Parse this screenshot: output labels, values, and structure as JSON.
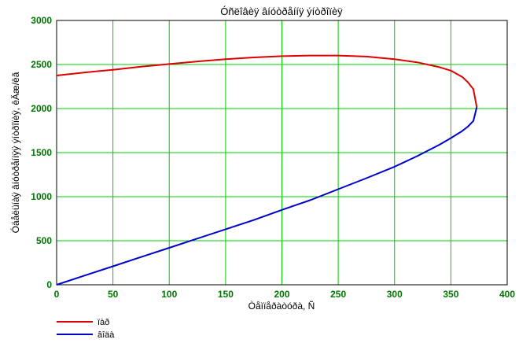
{
  "chart_data": {
    "type": "line",
    "title": "Óñëîâèÿ âíóòðåííÿ ýíòðîïèÿ",
    "xlabel": "Òåìïåðàòóðà, Ñ",
    "ylabel": "Óäåëüíàÿ âíóòðåííÿÿ ýíòðîïèÿ, êÄæ/êã",
    "xlim": [
      0,
      400
    ],
    "ylim": [
      0,
      3000
    ],
    "xticks": [
      "0",
      "50",
      "100",
      "150",
      "200",
      "250",
      "300",
      "350",
      "400"
    ],
    "yticks": [
      "0",
      "500",
      "1000",
      "1500",
      "2000",
      "2500",
      "3000"
    ],
    "xtick_values": [
      0,
      50,
      100,
      150,
      200,
      250,
      300,
      350,
      400
    ],
    "ytick_values": [
      0,
      500,
      1000,
      1500,
      2000,
      2500,
      3000
    ],
    "grid": true,
    "legend_position": "bottom-left",
    "series": [
      {
        "name": "ïàð",
        "color": "#dd0000",
        "x": [
          0,
          25,
          50,
          75,
          100,
          125,
          150,
          175,
          200,
          225,
          250,
          275,
          300,
          320,
          340,
          350,
          360,
          365,
          370,
          373
        ],
        "y": [
          2375,
          2410,
          2440,
          2475,
          2505,
          2535,
          2560,
          2580,
          2595,
          2602,
          2602,
          2590,
          2560,
          2525,
          2470,
          2430,
          2360,
          2300,
          2220,
          2015
        ]
      },
      {
        "name": "âîäà",
        "color": "#0000cc",
        "x": [
          0,
          25,
          50,
          75,
          100,
          125,
          150,
          175,
          200,
          225,
          250,
          275,
          300,
          320,
          340,
          350,
          360,
          365,
          370,
          373
        ],
        "y": [
          0,
          105,
          210,
          315,
          420,
          525,
          630,
          735,
          850,
          960,
          1085,
          1210,
          1340,
          1460,
          1590,
          1665,
          1745,
          1795,
          1860,
          2015
        ]
      }
    ]
  }
}
